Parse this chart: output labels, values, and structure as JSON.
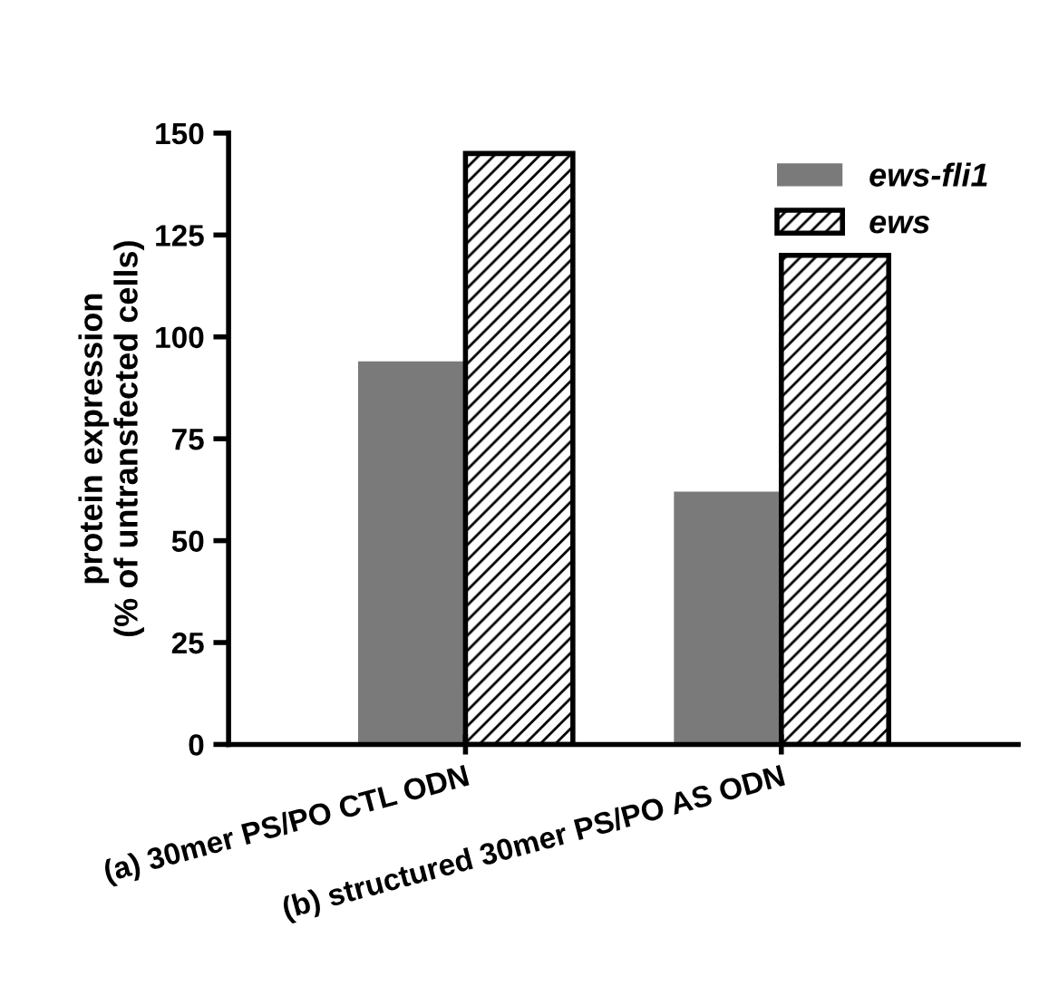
{
  "chart_data": {
    "type": "bar",
    "ylabel": "protein expression\n(% of untransfected cells)",
    "categories": [
      "(a) 30mer PS/PO CTL ODN",
      "(b) structured 30mer PS/PO AS ODN"
    ],
    "series": [
      {
        "name": "ews-fli1",
        "color": "#7a7a7a",
        "values": [
          94,
          62
        ]
      },
      {
        "name": "ews",
        "color": "#000000",
        "values": [
          145,
          120
        ]
      }
    ],
    "ylim": [
      0,
      150
    ],
    "yticks": [
      0,
      25,
      50,
      75,
      100,
      125,
      150
    ],
    "grid": false,
    "legend": "top right"
  }
}
